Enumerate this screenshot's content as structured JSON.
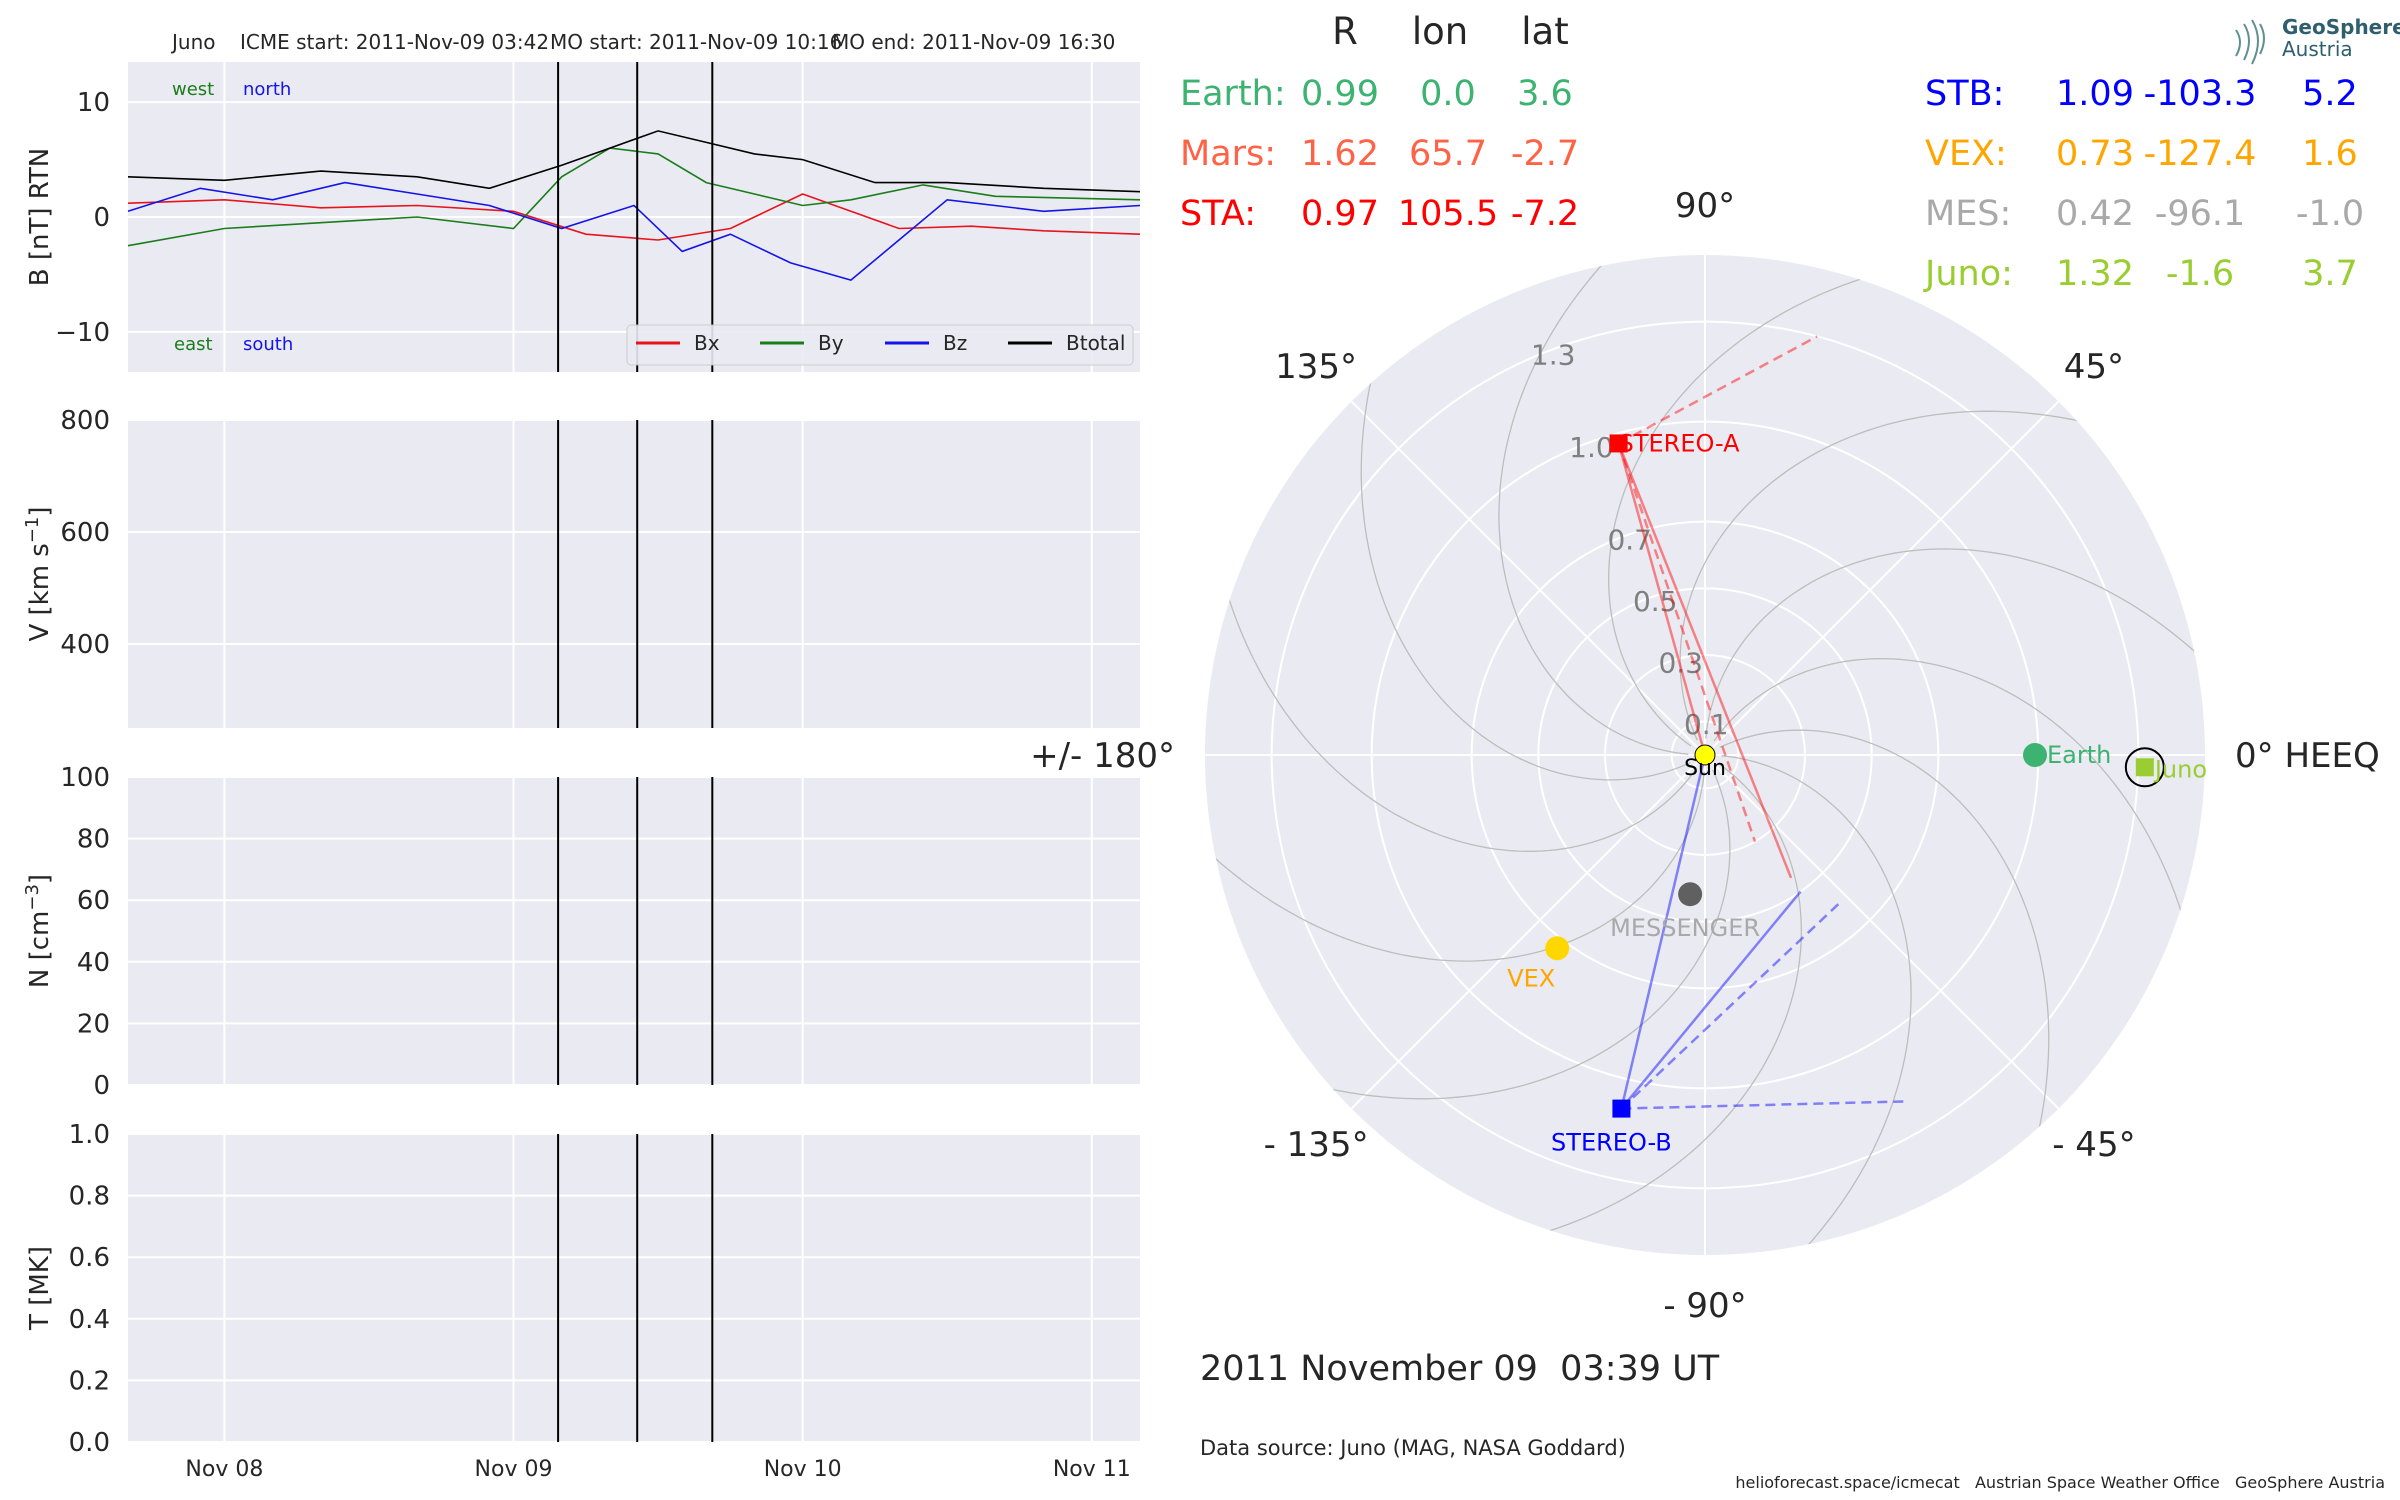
{
  "header": {
    "spacecraft": "Juno",
    "icme_start": "ICME start: 2011-Nov-09 03:42",
    "mo_start": "MO start: 2011-Nov-09 10:16",
    "mo_end": "MO end: 2011-Nov-09 16:30"
  },
  "time_axis": {
    "start": "2011-11-07T16:00",
    "end": "2011-11-11T04:00",
    "tick_labels": [
      {
        "date": "2011-11-08T00:00",
        "label": "Nov 08"
      },
      {
        "date": "2011-11-09T00:00",
        "label": "Nov 09"
      },
      {
        "date": "2011-11-10T00:00",
        "label": "Nov 10"
      },
      {
        "date": "2011-11-11T00:00",
        "label": "Nov 11"
      }
    ],
    "event_lines": [
      "2011-11-09T03:42",
      "2011-11-09T10:16",
      "2011-11-09T16:30"
    ]
  },
  "chart_data": [
    {
      "type": "line",
      "ylabel": "B [nT] RTN",
      "ylim": [
        -13.5,
        13.5
      ],
      "yticks": [
        {
          "v": 10,
          "label": "10"
        },
        {
          "v": 0,
          "label": "0"
        },
        {
          "v": -10,
          "label": "−10"
        }
      ],
      "grid": true,
      "annotations": {
        "west": "west",
        "north": "north",
        "east": "east",
        "south": "south"
      },
      "legend_position": "bottom-right",
      "series": [
        {
          "name": "Bx",
          "color": "#e8141c",
          "x": [
            "2011-11-07T16:00",
            "2011-11-08T00:00",
            "2011-11-08T08:00",
            "2011-11-08T16:00",
            "2011-11-09T00:00",
            "2011-11-09T06:00",
            "2011-11-09T12:00",
            "2011-11-09T18:00",
            "2011-11-10T00:00",
            "2011-11-10T04:00",
            "2011-11-10T08:00",
            "2011-11-10T14:00",
            "2011-11-10T20:00",
            "2011-11-11T04:00"
          ],
          "y": [
            1.2,
            1.5,
            0.8,
            1.0,
            0.5,
            -1.5,
            -2.0,
            -1.0,
            2.0,
            0.5,
            -1.0,
            -0.8,
            -1.2,
            -1.5
          ]
        },
        {
          "name": "By",
          "color": "#1a7d1a",
          "x": [
            "2011-11-07T16:00",
            "2011-11-08T00:00",
            "2011-11-08T08:00",
            "2011-11-08T16:00",
            "2011-11-09T00:00",
            "2011-11-09T04:00",
            "2011-11-09T08:00",
            "2011-11-09T12:00",
            "2011-11-09T16:00",
            "2011-11-09T20:00",
            "2011-11-10T00:00",
            "2011-11-10T04:00",
            "2011-11-10T10:00",
            "2011-11-10T16:00",
            "2011-11-11T04:00"
          ],
          "y": [
            -2.5,
            -1.0,
            -0.5,
            0.0,
            -1.0,
            3.5,
            6.0,
            5.5,
            3.0,
            2.0,
            1.0,
            1.5,
            2.8,
            1.8,
            1.5
          ]
        },
        {
          "name": "Bz",
          "color": "#1414e6",
          "x": [
            "2011-11-07T16:00",
            "2011-11-07T22:00",
            "2011-11-08T04:00",
            "2011-11-08T10:00",
            "2011-11-08T16:00",
            "2011-11-08T22:00",
            "2011-11-09T04:00",
            "2011-11-09T10:00",
            "2011-11-09T14:00",
            "2011-11-09T18:00",
            "2011-11-09T23:00",
            "2011-11-10T04:00",
            "2011-11-10T12:00",
            "2011-11-10T20:00",
            "2011-11-11T04:00"
          ],
          "y": [
            0.5,
            2.5,
            1.5,
            3.0,
            2.0,
            1.0,
            -1.0,
            1.0,
            -3.0,
            -1.5,
            -4.0,
            -5.5,
            1.5,
            0.5,
            1.0
          ]
        },
        {
          "name": "Btotal",
          "color": "#000000",
          "x": [
            "2011-11-07T16:00",
            "2011-11-08T00:00",
            "2011-11-08T08:00",
            "2011-11-08T16:00",
            "2011-11-08T22:00",
            "2011-11-09T04:00",
            "2011-11-09T08:00",
            "2011-11-09T12:00",
            "2011-11-09T16:00",
            "2011-11-09T20:00",
            "2011-11-10T00:00",
            "2011-11-10T06:00",
            "2011-11-10T12:00",
            "2011-11-10T20:00",
            "2011-11-11T04:00"
          ],
          "y": [
            3.5,
            3.2,
            4.0,
            3.5,
            2.5,
            4.5,
            6.0,
            7.5,
            6.5,
            5.5,
            5.0,
            3.0,
            3.0,
            2.5,
            2.2
          ]
        }
      ]
    },
    {
      "type": "line",
      "ylabel": "V [km s",
      "ylabel_exp": "−1",
      "ylabel_end": "]",
      "ylim": [
        250,
        800
      ],
      "yticks": [
        {
          "v": 800,
          "label": "800"
        },
        {
          "v": 600,
          "label": "600"
        },
        {
          "v": 400,
          "label": "400"
        }
      ],
      "grid": true,
      "series": []
    },
    {
      "type": "line",
      "ylabel": "N [cm",
      "ylabel_exp": "−3",
      "ylabel_end": "]",
      "ylim": [
        0,
        100
      ],
      "yticks": [
        {
          "v": 100,
          "label": "100"
        },
        {
          "v": 80,
          "label": "80"
        },
        {
          "v": 60,
          "label": "60"
        },
        {
          "v": 40,
          "label": "40"
        },
        {
          "v": 20,
          "label": "20"
        },
        {
          "v": 0,
          "label": "0"
        }
      ],
      "grid": true,
      "series": []
    },
    {
      "type": "line",
      "ylabel": "T [MK]",
      "ylim": [
        0,
        1.0
      ],
      "yticks": [
        {
          "v": 1.0,
          "label": "1.0"
        },
        {
          "v": 0.8,
          "label": "0.8"
        },
        {
          "v": 0.6,
          "label": "0.6"
        },
        {
          "v": 0.4,
          "label": "0.4"
        },
        {
          "v": 0.2,
          "label": "0.2"
        },
        {
          "v": 0.0,
          "label": "0.0"
        }
      ],
      "grid": true,
      "series": []
    },
    {
      "type": "scatter",
      "projection": "polar",
      "angle_labels": [
        {
          "deg": 0,
          "label": "0° HEEQ"
        },
        {
          "deg": 45,
          "label": "45°"
        },
        {
          "deg": 90,
          "label": "90°"
        },
        {
          "deg": 135,
          "label": "135°"
        },
        {
          "deg": 180,
          "label": "+/- 180°"
        },
        {
          "deg": -135,
          "label": "- 135°"
        },
        {
          "deg": -90,
          "label": "- 90°"
        },
        {
          "deg": -45,
          "label": "- 45°"
        }
      ],
      "radial_ticks": [
        {
          "r": 0.1,
          "label": "0.1"
        },
        {
          "r": 0.3,
          "label": "0.3"
        },
        {
          "r": 0.5,
          "label": "0.5"
        },
        {
          "r": 0.7,
          "label": "0.7"
        },
        {
          "r": 1.0,
          "label": "1.0"
        },
        {
          "r": 1.3,
          "label": "1.3"
        }
      ],
      "r_max": 1.5,
      "objects": [
        {
          "label": "Sun",
          "r": 0.0,
          "lon": 0.0,
          "color": "#ffff00",
          "marker": "circle"
        },
        {
          "label": "Earth",
          "r": 0.99,
          "lon": 0.0,
          "color": "#3cb371",
          "marker": "circle"
        },
        {
          "label": "Juno",
          "r": 1.32,
          "lon": -1.6,
          "color": "#9acd32",
          "marker": "square"
        },
        {
          "label": "STEREO-A",
          "r": 0.97,
          "lon": 105.5,
          "color": "#ff0000",
          "marker": "square"
        },
        {
          "label": "STEREO-B",
          "r": 1.09,
          "lon": -103.3,
          "color": "#0000ff",
          "marker": "square"
        },
        {
          "label": "VEX",
          "r": 0.73,
          "lon": -127.4,
          "color": "#ffd700",
          "marker": "circle"
        },
        {
          "label": "MESSENGER",
          "r": 0.42,
          "lon": -96.1,
          "color": "#606060",
          "marker": "circle"
        }
      ]
    }
  ],
  "position_table": {
    "headers": [
      "R",
      "lon",
      "lat"
    ],
    "left": [
      {
        "name": "Earth:",
        "R": "0.99",
        "lon": "0.0",
        "lat": "3.6",
        "color": "#3cb371"
      },
      {
        "name": "Mars:",
        "R": "1.62",
        "lon": "65.7",
        "lat": "-2.7",
        "color": "#ff6347"
      },
      {
        "name": "STA:",
        "R": "0.97",
        "lon": "105.5",
        "lat": "-7.2",
        "color": "#ff0000"
      }
    ],
    "right": [
      {
        "name": "STB:",
        "R": "1.09",
        "lon": "-103.3",
        "lat": "5.2",
        "color": "#0000ff"
      },
      {
        "name": "VEX:",
        "R": "0.73",
        "lon": "-127.4",
        "lat": "1.6",
        "color": "#ffa500"
      },
      {
        "name": "MES:",
        "R": "0.42",
        "lon": "-96.1",
        "lat": "-1.0",
        "color": "#a9a9a9"
      },
      {
        "name": "Juno:",
        "R": "1.32",
        "lon": "-1.6",
        "lat": "3.7",
        "color": "#9acd32"
      }
    ]
  },
  "date_text": "2011 November 09  03:39 UT",
  "source_text": "Data source: Juno (MAG, NASA Goddard)",
  "credits": "helioforecast.space/icmecat   Austrian Space Weather Office   GeoSphere Austria",
  "logo": {
    "line1": "GeoSphere",
    "line2": "Austria"
  }
}
